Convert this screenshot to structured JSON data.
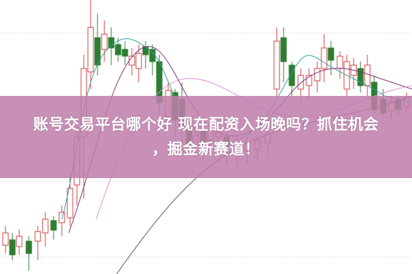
{
  "headline": {
    "line1": "账号交易平台哪个好 现在配资入场晚吗？抓住机会",
    "line2": "，掘金新赛道！"
  },
  "colors": {
    "up": "#d23c3c",
    "down": "#2e7d32",
    "banner": "#be7daa",
    "ma1": "#2aa0a0",
    "ma2": "#7a2a7a",
    "ma3": "#e08ad8",
    "ma4": "#555566"
  }
}
